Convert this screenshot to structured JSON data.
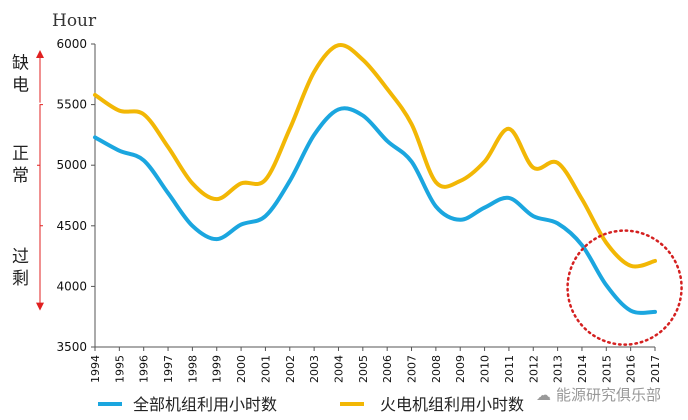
{
  "chart_data": {
    "type": "line",
    "title": "",
    "ylabel": "Hour",
    "xlabel": "",
    "ylim": [
      3500,
      6000
    ],
    "yticks": [
      3500,
      4000,
      4500,
      5000,
      5500,
      6000
    ],
    "x": [
      1994,
      1995,
      1996,
      1997,
      1998,
      1999,
      2000,
      2001,
      2002,
      2003,
      2004,
      2005,
      2006,
      2007,
      2008,
      2009,
      2010,
      2011,
      2012,
      2013,
      2014,
      2015,
      2016,
      2017
    ],
    "series": [
      {
        "name": "全部机组利用小时数",
        "color": "#1ba6df",
        "values": [
          5230,
          5120,
          5040,
          4770,
          4500,
          4390,
          4510,
          4580,
          4870,
          5250,
          5460,
          5410,
          5200,
          5030,
          4660,
          4550,
          4650,
          4730,
          4580,
          4520,
          4340,
          4010,
          3800,
          3790
        ]
      },
      {
        "name": "火电机组利用小时数",
        "color": "#f2b705",
        "values": [
          5580,
          5450,
          5420,
          5150,
          4850,
          4720,
          4850,
          4880,
          5300,
          5770,
          5990,
          5870,
          5630,
          5340,
          4860,
          4870,
          5030,
          5300,
          4980,
          5020,
          4720,
          4360,
          4170,
          4210
        ]
      }
    ],
    "grid": false,
    "legend": "bottom",
    "zones": [
      {
        "label": "缺电",
        "from": 5500,
        "to": 6000
      },
      {
        "label": "正常",
        "from": 4500,
        "to": 5500
      },
      {
        "label": "过剩",
        "from": 3800,
        "to": 4500
      }
    ],
    "zone_color": "#e02020",
    "highlight_circle": {
      "x_range": [
        2014.5,
        2017
      ],
      "color": "#d42020"
    }
  },
  "watermark": "能源研究俱乐部"
}
